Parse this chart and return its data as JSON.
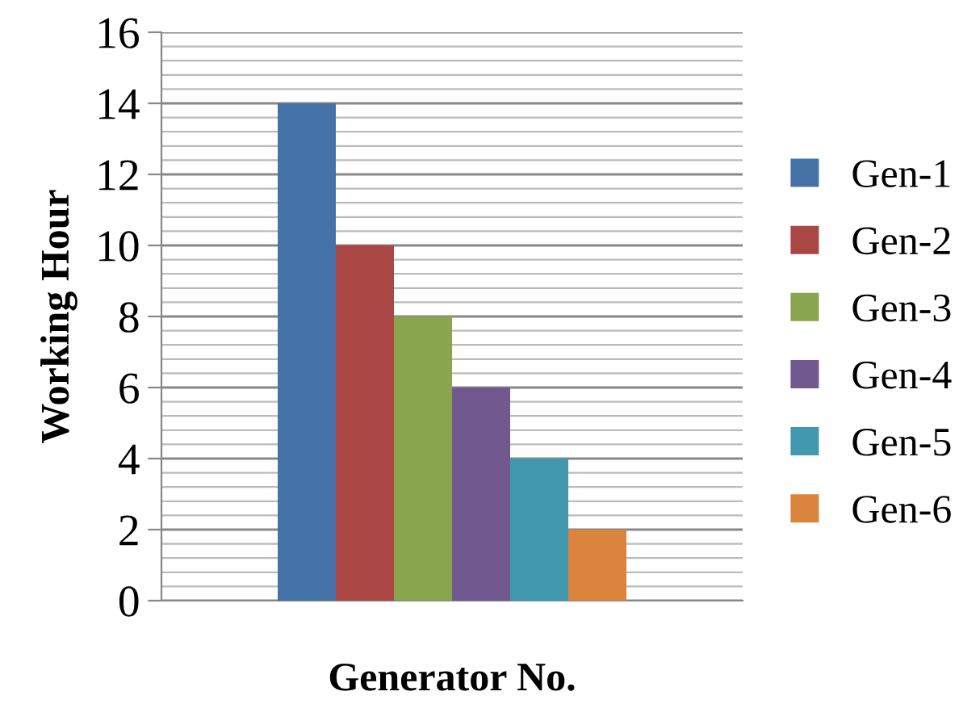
{
  "chart_data": {
    "type": "bar",
    "xlabel": "Generator No.",
    "ylabel": "Working Hour",
    "categories": [
      null
    ],
    "series": [
      {
        "name": "Gen-1",
        "color": "#4572a7",
        "values": [
          14
        ]
      },
      {
        "name": "Gen-2",
        "color": "#aa4643",
        "values": [
          10
        ]
      },
      {
        "name": "Gen-3",
        "color": "#89a54e",
        "values": [
          8
        ]
      },
      {
        "name": "Gen-4",
        "color": "#71588f",
        "values": [
          6
        ]
      },
      {
        "name": "Gen-5",
        "color": "#4198af",
        "values": [
          4
        ]
      },
      {
        "name": "Gen-6",
        "color": "#db843d",
        "values": [
          2
        ]
      }
    ],
    "ylim": [
      0,
      16
    ],
    "yticks": [
      0,
      2,
      4,
      6,
      8,
      10,
      12,
      14,
      16
    ],
    "grid": "y",
    "legend": "right"
  }
}
